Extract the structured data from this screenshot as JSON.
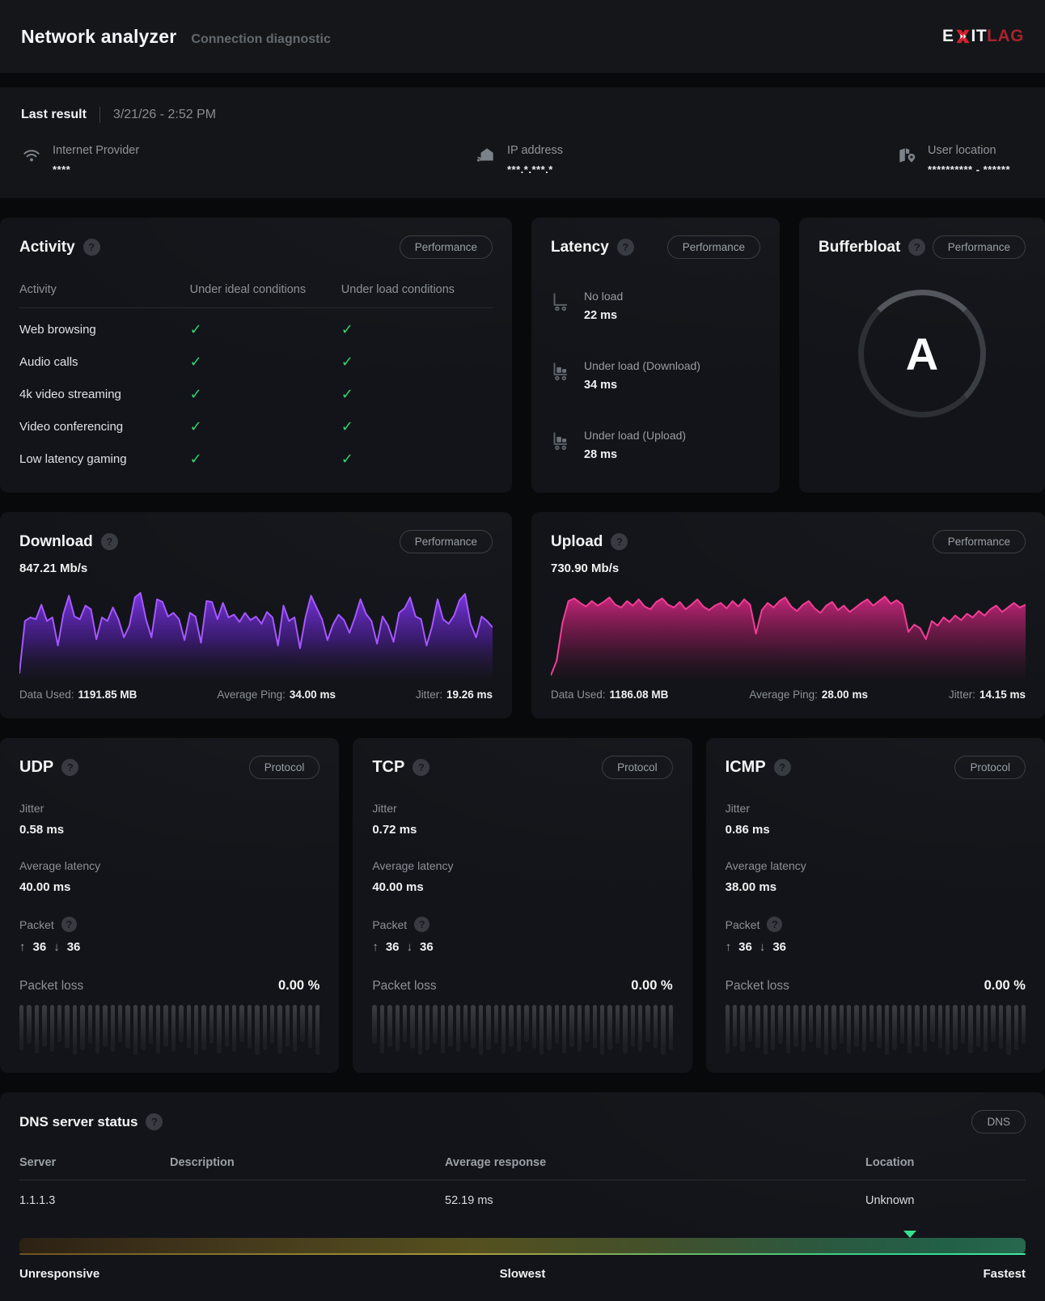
{
  "header": {
    "title": "Network analyzer",
    "subtitle": "Connection diagnostic",
    "logo": {
      "part1": "E",
      "part2": "IT",
      "part3": "LAG"
    }
  },
  "last_result": {
    "label": "Last result",
    "datetime": "3/21/26 - 2:52 PM",
    "items": [
      {
        "icon": "wifi-icon",
        "label": "Internet Provider",
        "value": "****"
      },
      {
        "icon": "ip-address-icon",
        "label": "IP address",
        "value": "***.*.***.*"
      },
      {
        "icon": "user-location-icon",
        "label": "User location",
        "value": "********** - ******"
      }
    ]
  },
  "activity": {
    "title": "Activity",
    "badge": "Performance",
    "columns": [
      "Activity",
      "Under ideal conditions",
      "Under load conditions"
    ],
    "rows": [
      {
        "label": "Web browsing",
        "ideal": true,
        "load": true
      },
      {
        "label": "Audio calls",
        "ideal": true,
        "load": true
      },
      {
        "label": "4k video streaming",
        "ideal": true,
        "load": true
      },
      {
        "label": "Video conferencing",
        "ideal": true,
        "load": true
      },
      {
        "label": "Low latency gaming",
        "ideal": true,
        "load": true
      }
    ]
  },
  "latency": {
    "title": "Latency",
    "badge": "Performance",
    "items": [
      {
        "icon": "cart-empty-icon",
        "label": "No load",
        "value": "22 ms"
      },
      {
        "icon": "cart-loaded-icon",
        "label": "Under load (Download)",
        "value": "34 ms"
      },
      {
        "icon": "cart-loaded-icon",
        "label": "Under load (Upload)",
        "value": "28 ms"
      }
    ]
  },
  "bufferbloat": {
    "title": "Bufferbloat",
    "badge": "Performance",
    "grade": "A"
  },
  "download": {
    "title": "Download",
    "badge": "Performance",
    "speed": "847.21 Mb/s",
    "stats": [
      {
        "label": "Data Used:",
        "value": "1191.85 MB"
      },
      {
        "label": "Average Ping:",
        "value": "34.00 ms"
      },
      {
        "label": "Jitter:",
        "value": "19.26 ms"
      }
    ],
    "line_color": "#a557ff",
    "fill_top": "rgba(132,56,246,0.92)",
    "fill_mid": "rgba(88,32,176,0.55)",
    "fill_bottom": "rgba(40,22,62,0.12)",
    "points": [
      0.04,
      0.62,
      0.66,
      0.64,
      0.8,
      0.62,
      0.66,
      0.35,
      0.7,
      0.9,
      0.67,
      0.64,
      0.79,
      0.75,
      0.42,
      0.66,
      0.62,
      0.77,
      0.64,
      0.44,
      0.57,
      0.88,
      0.93,
      0.64,
      0.44,
      0.86,
      0.83,
      0.67,
      0.71,
      0.64,
      0.41,
      0.71,
      0.67,
      0.38,
      0.84,
      0.83,
      0.64,
      0.82,
      0.66,
      0.69,
      0.61,
      0.71,
      0.63,
      0.67,
      0.59,
      0.72,
      0.66,
      0.35,
      0.79,
      0.62,
      0.66,
      0.32,
      0.66,
      0.9,
      0.77,
      0.64,
      0.41,
      0.58,
      0.69,
      0.63,
      0.49,
      0.66,
      0.86,
      0.7,
      0.62,
      0.37,
      0.67,
      0.57,
      0.39,
      0.71,
      0.76,
      0.88,
      0.67,
      0.64,
      0.35,
      0.56,
      0.86,
      0.64,
      0.59,
      0.68,
      0.85,
      0.92,
      0.59,
      0.44,
      0.67,
      0.62,
      0.55
    ]
  },
  "upload": {
    "title": "Upload",
    "badge": "Performance",
    "speed": "730.90 Mb/s",
    "stats": [
      {
        "label": "Data Used:",
        "value": "1186.08 MB"
      },
      {
        "label": "Average Ping:",
        "value": "28.00 ms"
      },
      {
        "label": "Jitter:",
        "value": "14.15 ms"
      }
    ],
    "line_color": "#f23d96",
    "fill_top": "rgba(214,40,130,0.92)",
    "fill_mid": "rgba(150,26,92,0.5)",
    "fill_bottom": "rgba(62,20,44,0.12)",
    "points": [
      0.02,
      0.18,
      0.6,
      0.84,
      0.87,
      0.82,
      0.78,
      0.84,
      0.79,
      0.83,
      0.88,
      0.8,
      0.77,
      0.84,
      0.79,
      0.86,
      0.78,
      0.75,
      0.83,
      0.87,
      0.8,
      0.77,
      0.83,
      0.75,
      0.8,
      0.86,
      0.78,
      0.74,
      0.79,
      0.82,
      0.76,
      0.84,
      0.78,
      0.86,
      0.8,
      0.48,
      0.74,
      0.82,
      0.77,
      0.84,
      0.88,
      0.78,
      0.73,
      0.8,
      0.84,
      0.76,
      0.71,
      0.79,
      0.83,
      0.74,
      0.79,
      0.72,
      0.77,
      0.82,
      0.86,
      0.79,
      0.84,
      0.89,
      0.81,
      0.85,
      0.8,
      0.5,
      0.58,
      0.54,
      0.42,
      0.62,
      0.57,
      0.66,
      0.61,
      0.68,
      0.63,
      0.7,
      0.66,
      0.73,
      0.68,
      0.75,
      0.79,
      0.72,
      0.77,
      0.82,
      0.77,
      0.8
    ]
  },
  "protocols": [
    {
      "name": "UDP",
      "badge": "Protocol",
      "jitter_label": "Jitter",
      "jitter": "0.58 ms",
      "latency_label": "Average latency",
      "latency": "40.00 ms",
      "packet_label": "Packet",
      "packets_up": "36",
      "packets_down": "36",
      "loss_label": "Packet loss",
      "loss": "0.00 %"
    },
    {
      "name": "TCP",
      "badge": "Protocol",
      "jitter_label": "Jitter",
      "jitter": "0.72 ms",
      "latency_label": "Average latency",
      "latency": "40.00 ms",
      "packet_label": "Packet",
      "packets_up": "36",
      "packets_down": "36",
      "loss_label": "Packet loss",
      "loss": "0.00 %"
    },
    {
      "name": "ICMP",
      "badge": "Protocol",
      "jitter_label": "Jitter",
      "jitter": "0.86 ms",
      "latency_label": "Average latency",
      "latency": "38.00 ms",
      "packet_label": "Packet",
      "packets_up": "36",
      "packets_down": "36",
      "loss_label": "Packet loss",
      "loss": "0.00 %"
    }
  ],
  "dns": {
    "title": "DNS server status",
    "badge": "DNS",
    "columns": [
      "Server",
      "Description",
      "Average response",
      "Location"
    ],
    "rows": [
      [
        "1.1.1.3",
        "",
        "52.19 ms",
        "Unknown"
      ]
    ],
    "scale": {
      "marker_position": 0.885,
      "labels": [
        "Unresponsive",
        "Slowest",
        "Fastest"
      ]
    }
  },
  "colors": {
    "check_green": "#2fd573",
    "marker_green": "#35e08f",
    "logo_red": "#d3222e",
    "logo_lag_red": "#a8232d"
  }
}
